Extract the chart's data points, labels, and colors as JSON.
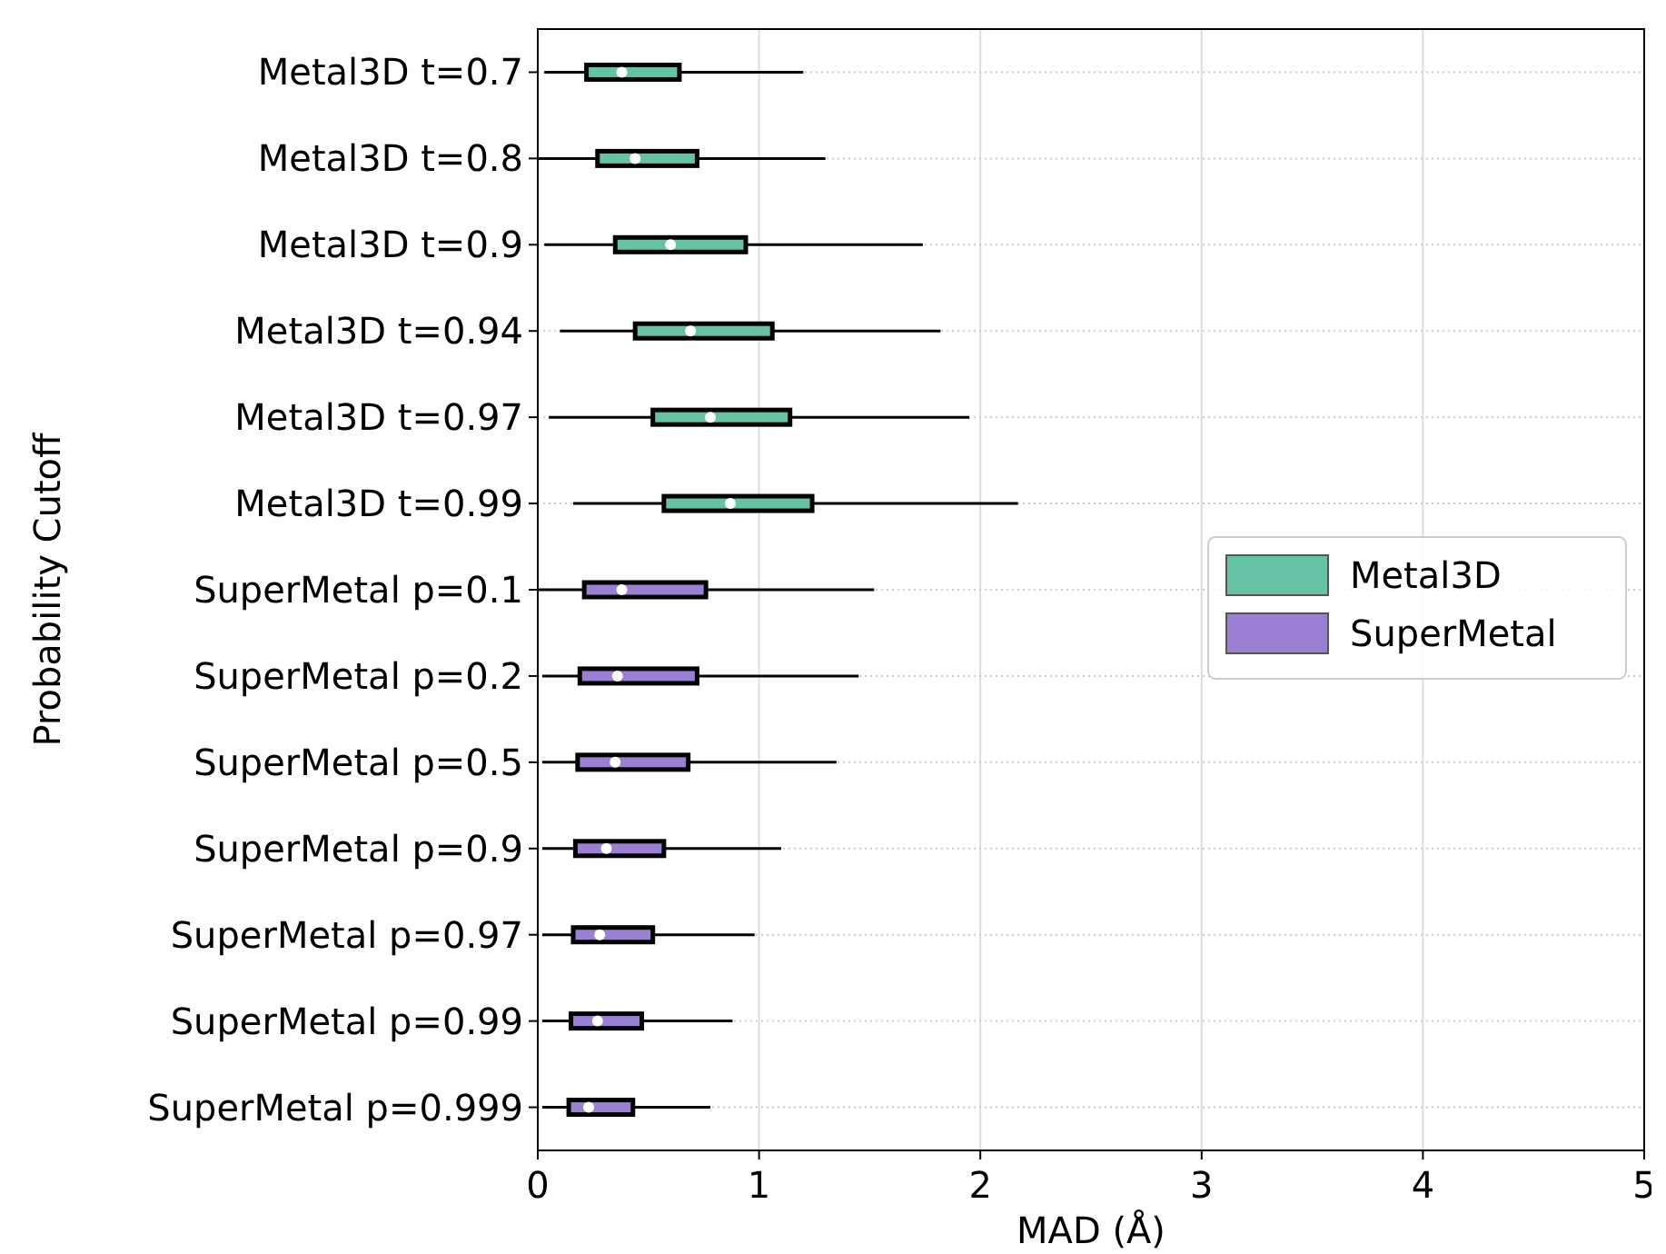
{
  "chart_data": {
    "type": "box",
    "orientation": "horizontal",
    "xlabel": "MAD (Å)",
    "ylabel": "Probability Cutoff",
    "categories": [
      "Metal3D t=0.7",
      "Metal3D t=0.8",
      "Metal3D t=0.9",
      "Metal3D t=0.94",
      "Metal3D t=0.97",
      "Metal3D t=0.99",
      "SuperMetal p=0.1",
      "SuperMetal p=0.2",
      "SuperMetal p=0.5",
      "SuperMetal p=0.9",
      "SuperMetal p=0.97",
      "SuperMetal p=0.99",
      "SuperMetal p=0.999"
    ],
    "series": [
      {
        "name": "Metal3D",
        "color": "#66c2a5",
        "boxes": [
          {
            "low": 0.03,
            "q1": 0.22,
            "median": 0.38,
            "q3": 0.64,
            "high": 1.2
          },
          {
            "low": 0.0,
            "q1": 0.27,
            "median": 0.44,
            "q3": 0.72,
            "high": 1.3
          },
          {
            "low": 0.03,
            "q1": 0.35,
            "median": 0.6,
            "q3": 0.94,
            "high": 1.74
          },
          {
            "low": 0.1,
            "q1": 0.44,
            "median": 0.69,
            "q3": 1.06,
            "high": 1.82
          },
          {
            "low": 0.05,
            "q1": 0.52,
            "median": 0.78,
            "q3": 1.14,
            "high": 1.95
          },
          {
            "low": 0.16,
            "q1": 0.57,
            "median": 0.87,
            "q3": 1.24,
            "high": 2.17
          },
          null,
          null,
          null,
          null,
          null,
          null,
          null
        ]
      },
      {
        "name": "SuperMetal",
        "color": "#9a7fd2",
        "boxes": [
          null,
          null,
          null,
          null,
          null,
          null,
          {
            "low": 0.0,
            "q1": 0.21,
            "median": 0.38,
            "q3": 0.76,
            "high": 1.52
          },
          {
            "low": 0.02,
            "q1": 0.19,
            "median": 0.36,
            "q3": 0.72,
            "high": 1.45
          },
          {
            "low": 0.02,
            "q1": 0.18,
            "median": 0.35,
            "q3": 0.68,
            "high": 1.35
          },
          {
            "low": 0.02,
            "q1": 0.17,
            "median": 0.31,
            "q3": 0.57,
            "high": 1.1
          },
          {
            "low": 0.02,
            "q1": 0.16,
            "median": 0.28,
            "q3": 0.52,
            "high": 0.98
          },
          {
            "low": 0.02,
            "q1": 0.15,
            "median": 0.27,
            "q3": 0.47,
            "high": 0.88
          },
          {
            "low": 0.02,
            "q1": 0.14,
            "median": 0.23,
            "q3": 0.43,
            "high": 0.78
          }
        ]
      }
    ],
    "xlim": [
      0,
      5
    ],
    "xticks": [
      0,
      1,
      2,
      3,
      4,
      5
    ],
    "grid": true,
    "legend": "right"
  }
}
